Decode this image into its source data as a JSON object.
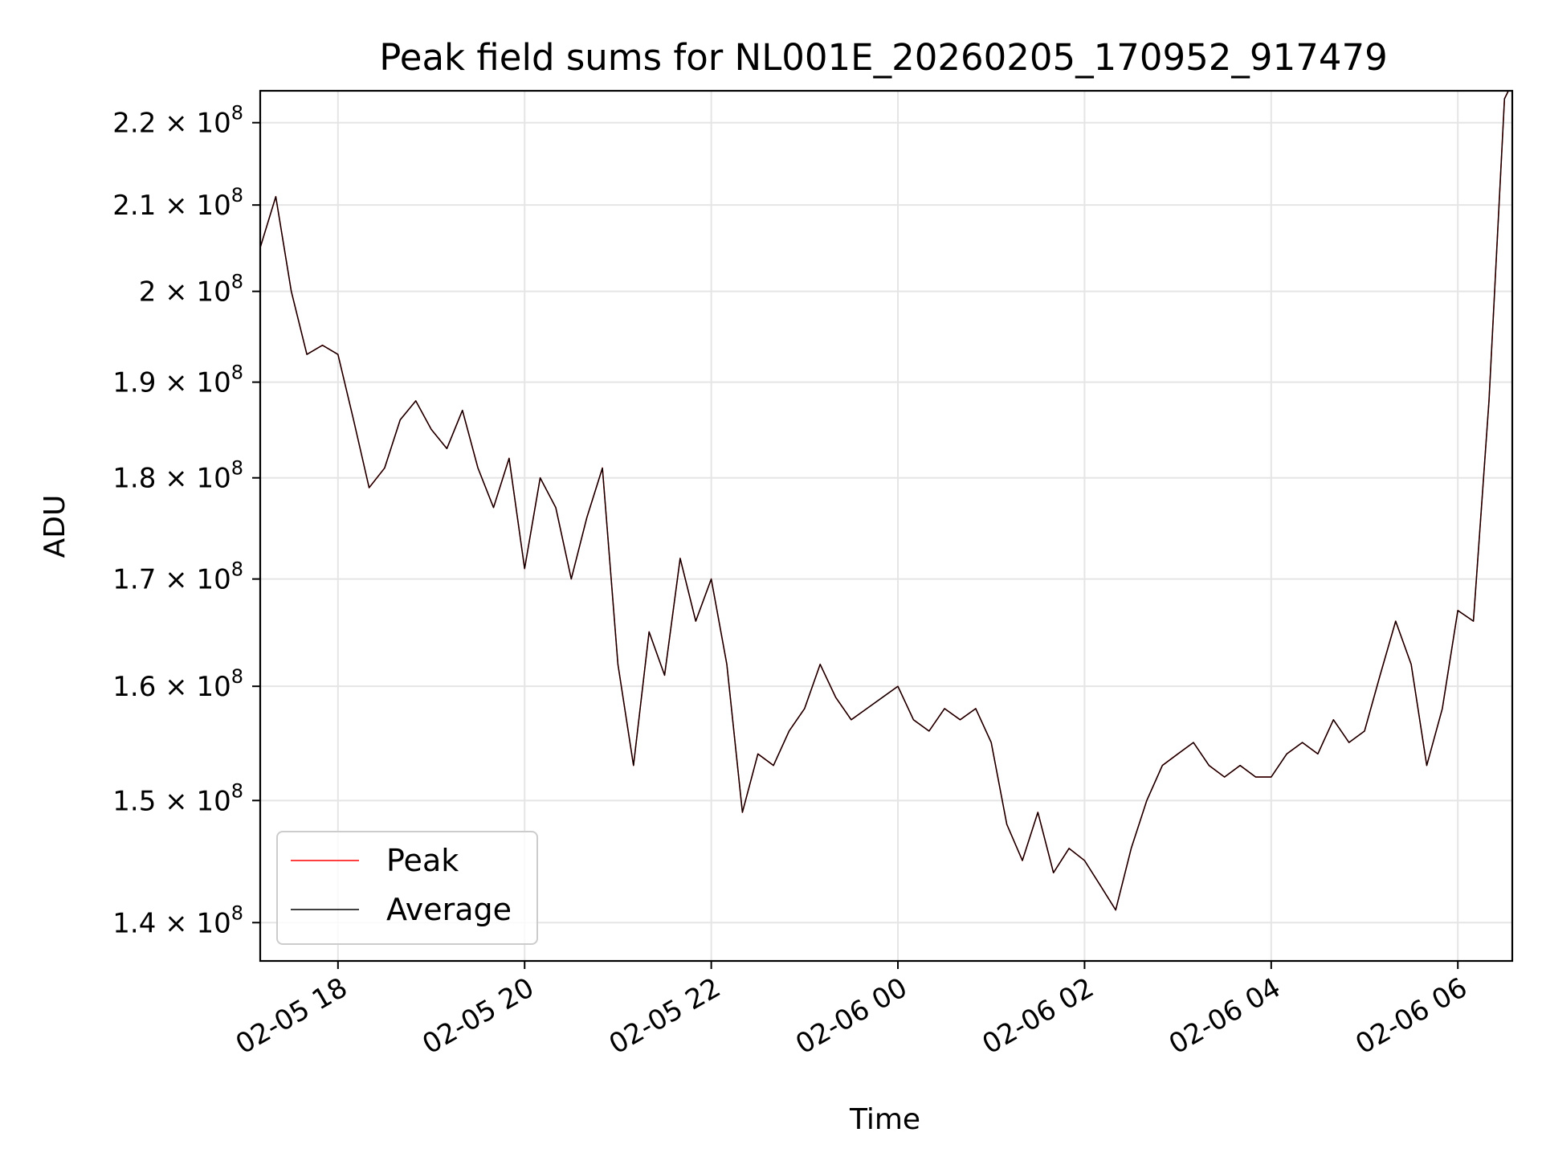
{
  "chart_data": {
    "type": "line",
    "title": "Peak field sums for NL001E_20260205_170952_917479",
    "xlabel": "Time",
    "ylabel": "ADU",
    "y_scale": "log",
    "xlim": [
      "2026-02-05 17:10",
      "2026-02-06 06:35"
    ],
    "ylim": [
      137000000,
      224000000
    ],
    "grid": true,
    "legend_position": "lower-left",
    "x_ticks": [
      {
        "value": "2026-02-05 18:00",
        "label": "02-05 18"
      },
      {
        "value": "2026-02-05 20:00",
        "label": "02-05 20"
      },
      {
        "value": "2026-02-05 22:00",
        "label": "02-05 22"
      },
      {
        "value": "2026-02-06 00:00",
        "label": "02-06 00"
      },
      {
        "value": "2026-02-06 02:00",
        "label": "02-06 02"
      },
      {
        "value": "2026-02-06 04:00",
        "label": "02-06 04"
      },
      {
        "value": "2026-02-06 06:00",
        "label": "02-06 06"
      }
    ],
    "y_ticks": [
      {
        "value": 140000000,
        "mantissa": "1.4",
        "base": "10",
        "exponent": "8"
      },
      {
        "value": 150000000,
        "mantissa": "1.5",
        "base": "10",
        "exponent": "8"
      },
      {
        "value": 160000000,
        "mantissa": "1.6",
        "base": "10",
        "exponent": "8"
      },
      {
        "value": 170000000,
        "mantissa": "1.7",
        "base": "10",
        "exponent": "8"
      },
      {
        "value": 180000000,
        "mantissa": "1.8",
        "base": "10",
        "exponent": "8"
      },
      {
        "value": 190000000,
        "mantissa": "1.9",
        "base": "10",
        "exponent": "8"
      },
      {
        "value": 200000000,
        "mantissa": "2",
        "base": "10",
        "exponent": "8"
      },
      {
        "value": 210000000,
        "mantissa": "2.1",
        "base": "10",
        "exponent": "8"
      },
      {
        "value": 220000000,
        "mantissa": "2.2",
        "base": "10",
        "exponent": "8"
      }
    ],
    "x": [
      "2026-02-05 17:10",
      "2026-02-05 17:20",
      "2026-02-05 17:30",
      "2026-02-05 17:40",
      "2026-02-05 17:50",
      "2026-02-05 18:00",
      "2026-02-05 18:10",
      "2026-02-05 18:20",
      "2026-02-05 18:30",
      "2026-02-05 18:40",
      "2026-02-05 18:50",
      "2026-02-05 19:00",
      "2026-02-05 19:10",
      "2026-02-05 19:20",
      "2026-02-05 19:30",
      "2026-02-05 19:40",
      "2026-02-05 19:50",
      "2026-02-05 20:00",
      "2026-02-05 20:10",
      "2026-02-05 20:20",
      "2026-02-05 20:30",
      "2026-02-05 20:40",
      "2026-02-05 20:50",
      "2026-02-05 21:00",
      "2026-02-05 21:10",
      "2026-02-05 21:20",
      "2026-02-05 21:30",
      "2026-02-05 21:40",
      "2026-02-05 21:50",
      "2026-02-05 22:00",
      "2026-02-05 22:10",
      "2026-02-05 22:20",
      "2026-02-05 22:30",
      "2026-02-05 22:40",
      "2026-02-05 22:50",
      "2026-02-05 23:00",
      "2026-02-05 23:10",
      "2026-02-05 23:20",
      "2026-02-05 23:30",
      "2026-02-05 23:40",
      "2026-02-05 23:50",
      "2026-02-06 00:00",
      "2026-02-06 00:10",
      "2026-02-06 00:20",
      "2026-02-06 00:30",
      "2026-02-06 00:40",
      "2026-02-06 00:50",
      "2026-02-06 01:00",
      "2026-02-06 01:10",
      "2026-02-06 01:20",
      "2026-02-06 01:30",
      "2026-02-06 01:40",
      "2026-02-06 01:50",
      "2026-02-06 02:00",
      "2026-02-06 02:10",
      "2026-02-06 02:20",
      "2026-02-06 02:30",
      "2026-02-06 02:40",
      "2026-02-06 02:50",
      "2026-02-06 03:00",
      "2026-02-06 03:10",
      "2026-02-06 03:20",
      "2026-02-06 03:30",
      "2026-02-06 03:40",
      "2026-02-06 03:50",
      "2026-02-06 04:00",
      "2026-02-06 04:10",
      "2026-02-06 04:20",
      "2026-02-06 04:30",
      "2026-02-06 04:40",
      "2026-02-06 04:50",
      "2026-02-06 05:00",
      "2026-02-06 05:10",
      "2026-02-06 05:20",
      "2026-02-06 05:30",
      "2026-02-06 05:40",
      "2026-02-06 05:50",
      "2026-02-06 06:00",
      "2026-02-06 06:10",
      "2026-02-06 06:20",
      "2026-02-06 06:30",
      "2026-02-06 06:35"
    ],
    "series": [
      {
        "name": "Peak",
        "color": "#ff0000",
        "values": [
          205000000,
          211000000,
          200000000,
          193000000,
          194000000,
          193000000,
          186000000,
          179000000,
          181000000,
          186000000,
          188000000,
          185000000,
          183000000,
          187000000,
          181000000,
          177000000,
          182000000,
          171000000,
          180000000,
          177000000,
          170000000,
          176000000,
          181000000,
          162000000,
          153000000,
          165000000,
          161000000,
          172000000,
          166000000,
          170000000,
          162000000,
          149000000,
          154000000,
          153000000,
          156000000,
          158000000,
          162000000,
          159000000,
          157000000,
          158000000,
          159000000,
          160000000,
          157000000,
          156000000,
          158000000,
          157000000,
          158000000,
          155000000,
          148000000,
          145000000,
          149000000,
          144000000,
          146000000,
          145000000,
          143000000,
          141000000,
          146000000,
          150000000,
          153000000,
          154000000,
          155000000,
          153000000,
          152000000,
          153000000,
          152000000,
          152000000,
          154000000,
          155000000,
          154000000,
          157000000,
          155000000,
          156000000,
          161000000,
          166000000,
          162000000,
          153000000,
          158000000,
          167000000,
          166000000,
          188000000,
          223000000,
          225000000
        ]
      },
      {
        "name": "Average",
        "color": "#000000",
        "values": [
          205000000,
          211000000,
          200000000,
          193000000,
          194000000,
          193000000,
          186000000,
          179000000,
          181000000,
          186000000,
          188000000,
          185000000,
          183000000,
          187000000,
          181000000,
          177000000,
          182000000,
          171000000,
          180000000,
          177000000,
          170000000,
          176000000,
          181000000,
          162000000,
          153000000,
          165000000,
          161000000,
          172000000,
          166000000,
          170000000,
          162000000,
          149000000,
          154000000,
          153000000,
          156000000,
          158000000,
          162000000,
          159000000,
          157000000,
          158000000,
          159000000,
          160000000,
          157000000,
          156000000,
          158000000,
          157000000,
          158000000,
          155000000,
          148000000,
          145000000,
          149000000,
          144000000,
          146000000,
          145000000,
          143000000,
          141000000,
          146000000,
          150000000,
          153000000,
          154000000,
          155000000,
          153000000,
          152000000,
          153000000,
          152000000,
          152000000,
          154000000,
          155000000,
          154000000,
          157000000,
          155000000,
          156000000,
          161000000,
          166000000,
          162000000,
          153000000,
          158000000,
          167000000,
          166000000,
          188000000,
          223000000,
          225000000
        ]
      }
    ]
  }
}
